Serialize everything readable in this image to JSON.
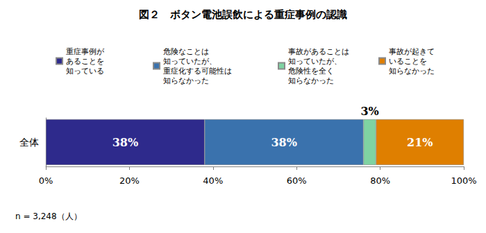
{
  "chart_data": {
    "type": "bar",
    "title": "図２　ボタン電池誤飲による重症事例の認識",
    "orientation": "horizontal",
    "stacked": true,
    "categories": [
      "全体"
    ],
    "series": [
      {
        "name": "重症事例が\nあることを\n知っている",
        "color": "#2e2a8c",
        "values": [
          38
        ],
        "value_labels": [
          "38%"
        ]
      },
      {
        "name": "危険なことは\n知っていたが、\n重症化する可能性は\n知らなかった",
        "color": "#3a72ad",
        "values": [
          38
        ],
        "value_labels": [
          "38%"
        ]
      },
      {
        "name": "事故があることは\n知っていたが、\n危険性を全く\n知らなかった",
        "color": "#7fd3a2",
        "values": [
          3
        ],
        "value_labels": [
          "3%"
        ]
      },
      {
        "name": "事故が起きて\nいることを\n知らなかった",
        "color": "#df7f00",
        "values": [
          21
        ],
        "value_labels": [
          "21%"
        ]
      }
    ],
    "xlim": [
      0,
      100
    ],
    "xticks": [
      {
        "value": 0,
        "label": "0%"
      },
      {
        "value": 20,
        "label": "20%"
      },
      {
        "value": 40,
        "label": "40%"
      },
      {
        "value": 60,
        "label": "60%"
      },
      {
        "value": 80,
        "label": "80%"
      },
      {
        "value": 100,
        "label": "100%"
      }
    ],
    "grid": false,
    "legend": "top",
    "data_labels": true,
    "annotation": "n = 3,248（人）"
  }
}
